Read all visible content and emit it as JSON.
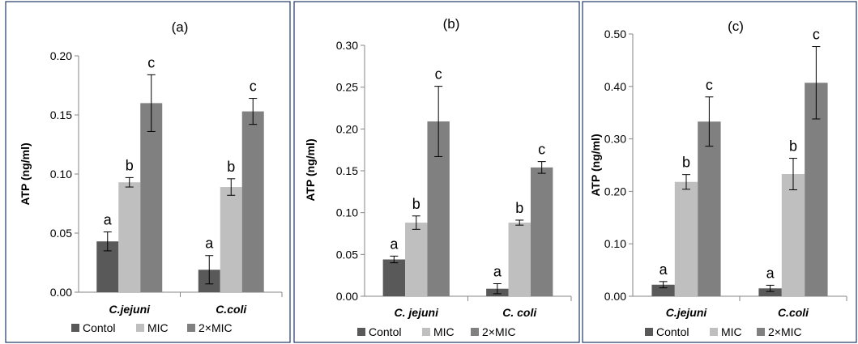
{
  "colors": {
    "frame": "#1f3a66",
    "axis": "#868686",
    "text": "#000000",
    "errbar": "#000000"
  },
  "chart_data": [
    {
      "type": "bar",
      "title": "(a)",
      "ylabel": "ATP (ng/ml)",
      "xlabel": "",
      "ylim": [
        0,
        0.2
      ],
      "ytick_values": [
        0,
        0.05,
        0.1,
        0.15,
        0.2
      ],
      "ytick_labels": [
        "0.00",
        "0.05",
        "0.10",
        "0.15",
        "0.20"
      ],
      "grid": false,
      "legend": "bottom",
      "categories": [
        "C.jejuni",
        "C.coli"
      ],
      "series": [
        {
          "name": "Contol",
          "color": "#595959",
          "values": [
            0.043,
            0.019
          ],
          "errors": [
            0.008,
            0.012
          ],
          "labels": [
            "a",
            "a"
          ]
        },
        {
          "name": "MIC",
          "color": "#bfbfbf",
          "values": [
            0.093,
            0.089
          ],
          "errors": [
            0.004,
            0.007
          ],
          "labels": [
            "b",
            "b"
          ]
        },
        {
          "name": "2×MIC",
          "color": "#808080",
          "values": [
            0.16,
            0.153
          ],
          "errors": [
            0.024,
            0.011
          ],
          "labels": [
            "c",
            "c"
          ]
        }
      ]
    },
    {
      "type": "bar",
      "title": "(b)",
      "ylabel": "ATP (ng/ml)",
      "xlabel": "",
      "ylim": [
        0,
        0.3
      ],
      "ytick_values": [
        0,
        0.05,
        0.1,
        0.15,
        0.2,
        0.25,
        0.3
      ],
      "ytick_labels": [
        "0.00",
        "0.05",
        "0.10",
        "0.15",
        "0.20",
        "0.25",
        "0.30"
      ],
      "grid": false,
      "legend": "bottom",
      "categories": [
        "C. jejuni",
        "C. coli"
      ],
      "series": [
        {
          "name": "Contol",
          "color": "#595959",
          "values": [
            0.044,
            0.009
          ],
          "errors": [
            0.004,
            0.006
          ],
          "labels": [
            "a",
            "a"
          ]
        },
        {
          "name": "MIC",
          "color": "#bfbfbf",
          "values": [
            0.088,
            0.088
          ],
          "errors": [
            0.008,
            0.003
          ],
          "labels": [
            "b",
            "b"
          ]
        },
        {
          "name": "2×MIC",
          "color": "#808080",
          "values": [
            0.209,
            0.154
          ],
          "errors": [
            0.042,
            0.007
          ],
          "labels": [
            "c",
            "c"
          ]
        }
      ]
    },
    {
      "type": "bar",
      "title": "(c)",
      "ylabel": "ATP (ng/ml)",
      "xlabel": "",
      "ylim": [
        0,
        0.5
      ],
      "ytick_values": [
        0,
        0.1,
        0.2,
        0.3,
        0.4,
        0.5
      ],
      "ytick_labels": [
        "0.00",
        "0.10",
        "0.20",
        "0.30",
        "0.40",
        "0.50"
      ],
      "grid": false,
      "legend": "bottom",
      "categories": [
        "C.jejuni",
        "C.coli"
      ],
      "series": [
        {
          "name": "Contol",
          "color": "#595959",
          "values": [
            0.022,
            0.015
          ],
          "errors": [
            0.006,
            0.006
          ],
          "labels": [
            "a",
            "a"
          ]
        },
        {
          "name": "MIC",
          "color": "#bfbfbf",
          "values": [
            0.218,
            0.233
          ],
          "errors": [
            0.014,
            0.03
          ],
          "labels": [
            "b",
            "b"
          ]
        },
        {
          "name": "2×MIC",
          "color": "#808080",
          "values": [
            0.333,
            0.407
          ],
          "errors": [
            0.047,
            0.069
          ],
          "labels": [
            "c",
            "c"
          ]
        }
      ]
    }
  ]
}
